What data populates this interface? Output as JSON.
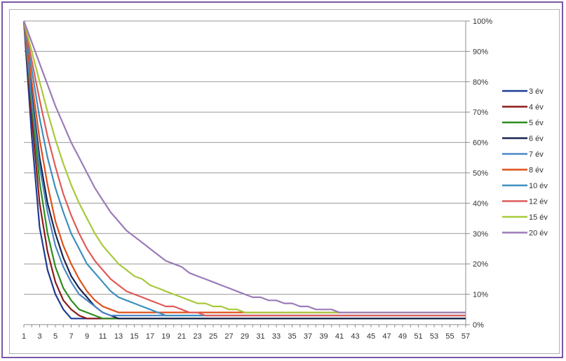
{
  "chart_data": {
    "type": "line",
    "title": "",
    "xlabel": "",
    "ylabel": "",
    "x_range": [
      1,
      57
    ],
    "x_tick_labels": [
      "1",
      "3",
      "5",
      "7",
      "9",
      "11",
      "13",
      "15",
      "17",
      "19",
      "21",
      "23",
      "25",
      "27",
      "29",
      "31",
      "33",
      "35",
      "37",
      "39",
      "41",
      "43",
      "45",
      "47",
      "49",
      "51",
      "53",
      "55",
      "57"
    ],
    "ylim": [
      0,
      100
    ],
    "y_ticks": [
      0,
      10,
      20,
      30,
      40,
      50,
      60,
      70,
      80,
      90,
      100
    ],
    "y_tick_labels": [
      "0%",
      "10%",
      "20%",
      "30%",
      "40%",
      "50%",
      "60%",
      "70%",
      "80%",
      "90%",
      "100%"
    ],
    "y_axis_position": "right",
    "grid": true,
    "legend_position": "right",
    "series": [
      {
        "name": "3 év",
        "color": "#1f3a93",
        "points": [
          [
            1,
            100
          ],
          [
            2,
            62
          ],
          [
            3,
            32
          ],
          [
            4,
            18
          ],
          [
            5,
            10
          ],
          [
            6,
            5
          ],
          [
            7,
            2
          ],
          [
            8,
            2
          ],
          [
            9,
            2
          ],
          [
            10,
            2
          ],
          [
            57,
            2
          ]
        ]
      },
      {
        "name": "4 év",
        "color": "#8b1a1a",
        "points": [
          [
            1,
            100
          ],
          [
            2,
            68
          ],
          [
            3,
            40
          ],
          [
            4,
            24
          ],
          [
            5,
            14
          ],
          [
            6,
            8
          ],
          [
            7,
            5
          ],
          [
            8,
            3
          ],
          [
            9,
            2
          ],
          [
            10,
            2
          ],
          [
            57,
            2
          ]
        ]
      },
      {
        "name": "5 év",
        "color": "#2e8b1e",
        "points": [
          [
            1,
            100
          ],
          [
            2,
            72
          ],
          [
            3,
            47
          ],
          [
            4,
            30
          ],
          [
            5,
            19
          ],
          [
            6,
            12
          ],
          [
            7,
            8
          ],
          [
            8,
            5
          ],
          [
            9,
            4
          ],
          [
            10,
            3
          ],
          [
            11,
            2
          ],
          [
            57,
            2
          ]
        ]
      },
      {
        "name": "6 év",
        "color": "#1a2550",
        "points": [
          [
            1,
            100
          ],
          [
            2,
            76
          ],
          [
            3,
            55
          ],
          [
            4,
            40
          ],
          [
            5,
            30
          ],
          [
            6,
            22
          ],
          [
            7,
            16
          ],
          [
            8,
            12
          ],
          [
            9,
            9
          ],
          [
            10,
            6
          ],
          [
            11,
            4
          ],
          [
            12,
            3
          ],
          [
            13,
            2
          ],
          [
            57,
            2
          ]
        ]
      },
      {
        "name": "7 év",
        "color": "#4a86c5",
        "points": [
          [
            1,
            100
          ],
          [
            2,
            74
          ],
          [
            3,
            52
          ],
          [
            4,
            37
          ],
          [
            5,
            26
          ],
          [
            6,
            19
          ],
          [
            7,
            14
          ],
          [
            8,
            10
          ],
          [
            9,
            8
          ],
          [
            10,
            6
          ],
          [
            11,
            4
          ],
          [
            12,
            3
          ],
          [
            13,
            3
          ],
          [
            14,
            3
          ],
          [
            57,
            3
          ]
        ]
      },
      {
        "name": "8 év",
        "color": "#e0501a",
        "points": [
          [
            1,
            100
          ],
          [
            2,
            80
          ],
          [
            3,
            61
          ],
          [
            4,
            46
          ],
          [
            5,
            34
          ],
          [
            6,
            26
          ],
          [
            7,
            20
          ],
          [
            8,
            15
          ],
          [
            9,
            11
          ],
          [
            10,
            8
          ],
          [
            11,
            6
          ],
          [
            12,
            5
          ],
          [
            13,
            4
          ],
          [
            14,
            4
          ],
          [
            15,
            4
          ],
          [
            57,
            4
          ]
        ]
      },
      {
        "name": "10 év",
        "color": "#3d8fbf",
        "points": [
          [
            1,
            100
          ],
          [
            2,
            84
          ],
          [
            3,
            68
          ],
          [
            4,
            55
          ],
          [
            5,
            45
          ],
          [
            6,
            37
          ],
          [
            7,
            30
          ],
          [
            8,
            25
          ],
          [
            9,
            20
          ],
          [
            10,
            17
          ],
          [
            11,
            14
          ],
          [
            12,
            11
          ],
          [
            13,
            9
          ],
          [
            14,
            8
          ],
          [
            15,
            7
          ],
          [
            16,
            6
          ],
          [
            17,
            5
          ],
          [
            18,
            4
          ],
          [
            19,
            3
          ],
          [
            20,
            3
          ],
          [
            57,
            3
          ]
        ]
      },
      {
        "name": "12 év",
        "color": "#e05a5a",
        "points": [
          [
            1,
            100
          ],
          [
            2,
            87
          ],
          [
            3,
            74
          ],
          [
            4,
            62
          ],
          [
            5,
            52
          ],
          [
            6,
            43
          ],
          [
            7,
            36
          ],
          [
            8,
            30
          ],
          [
            9,
            25
          ],
          [
            10,
            21
          ],
          [
            11,
            18
          ],
          [
            12,
            15
          ],
          [
            13,
            13
          ],
          [
            14,
            11
          ],
          [
            15,
            10
          ],
          [
            16,
            9
          ],
          [
            17,
            8
          ],
          [
            18,
            7
          ],
          [
            19,
            6
          ],
          [
            20,
            6
          ],
          [
            21,
            5
          ],
          [
            22,
            4
          ],
          [
            23,
            4
          ],
          [
            24,
            3
          ],
          [
            25,
            3
          ],
          [
            57,
            3
          ]
        ]
      },
      {
        "name": "15 év",
        "color": "#a8c93a",
        "points": [
          [
            1,
            100
          ],
          [
            2,
            90
          ],
          [
            3,
            80
          ],
          [
            4,
            70
          ],
          [
            5,
            61
          ],
          [
            6,
            53
          ],
          [
            7,
            46
          ],
          [
            8,
            40
          ],
          [
            9,
            35
          ],
          [
            10,
            30
          ],
          [
            11,
            26
          ],
          [
            12,
            23
          ],
          [
            13,
            20
          ],
          [
            14,
            18
          ],
          [
            15,
            16
          ],
          [
            16,
            15
          ],
          [
            17,
            13
          ],
          [
            18,
            12
          ],
          [
            19,
            11
          ],
          [
            20,
            10
          ],
          [
            21,
            9
          ],
          [
            22,
            8
          ],
          [
            23,
            7
          ],
          [
            24,
            7
          ],
          [
            25,
            6
          ],
          [
            26,
            6
          ],
          [
            27,
            5
          ],
          [
            28,
            5
          ],
          [
            29,
            4
          ],
          [
            30,
            4
          ],
          [
            31,
            4
          ],
          [
            57,
            4
          ]
        ]
      },
      {
        "name": "20 év",
        "color": "#9b7bb8",
        "points": [
          [
            1,
            100
          ],
          [
            2,
            93
          ],
          [
            3,
            86
          ],
          [
            4,
            79
          ],
          [
            5,
            72
          ],
          [
            6,
            66
          ],
          [
            7,
            60
          ],
          [
            8,
            55
          ],
          [
            9,
            50
          ],
          [
            10,
            45
          ],
          [
            11,
            41
          ],
          [
            12,
            37
          ],
          [
            13,
            34
          ],
          [
            14,
            31
          ],
          [
            15,
            29
          ],
          [
            16,
            27
          ],
          [
            17,
            25
          ],
          [
            18,
            23
          ],
          [
            19,
            21
          ],
          [
            20,
            20
          ],
          [
            21,
            19
          ],
          [
            22,
            17
          ],
          [
            23,
            16
          ],
          [
            24,
            15
          ],
          [
            25,
            14
          ],
          [
            26,
            13
          ],
          [
            27,
            12
          ],
          [
            28,
            11
          ],
          [
            29,
            10
          ],
          [
            30,
            9
          ],
          [
            31,
            9
          ],
          [
            32,
            8
          ],
          [
            33,
            8
          ],
          [
            34,
            7
          ],
          [
            35,
            7
          ],
          [
            36,
            6
          ],
          [
            37,
            6
          ],
          [
            38,
            5
          ],
          [
            39,
            5
          ],
          [
            40,
            5
          ],
          [
            41,
            4
          ],
          [
            42,
            4
          ],
          [
            43,
            4
          ],
          [
            57,
            4
          ]
        ]
      }
    ]
  }
}
